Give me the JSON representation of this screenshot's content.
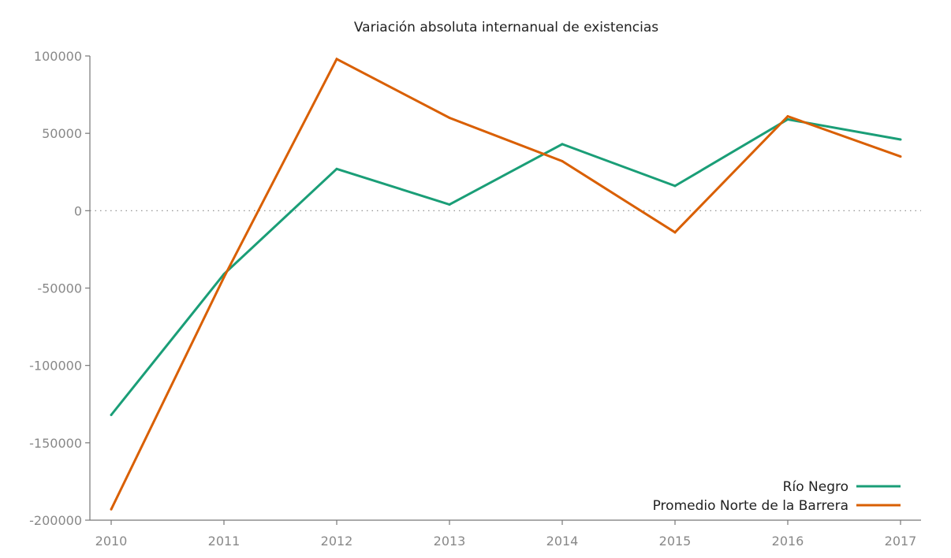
{
  "chart_data": {
    "type": "line",
    "title": "Variación absoluta internanual de existencias",
    "xlabel": "",
    "ylabel": "",
    "x": [
      2010,
      2011,
      2012,
      2013,
      2014,
      2015,
      2016,
      2017
    ],
    "ylim": [
      -200000,
      100000
    ],
    "yticks": [
      100000,
      50000,
      0,
      -50000,
      -100000,
      -150000,
      -200000
    ],
    "grid": false,
    "zero_line": "dotted",
    "legend_position": "bottom-right",
    "series": [
      {
        "name": "Río Negro",
        "color": "#1a9e77",
        "values": [
          -132000,
          -41000,
          27000,
          4000,
          43000,
          16000,
          59000,
          46000
        ]
      },
      {
        "name": "Promedio Norte de la Barrera",
        "color": "#d95f02",
        "values": [
          -193000,
          -43000,
          98000,
          60000,
          32000,
          -14000,
          61000,
          35000
        ]
      }
    ]
  }
}
